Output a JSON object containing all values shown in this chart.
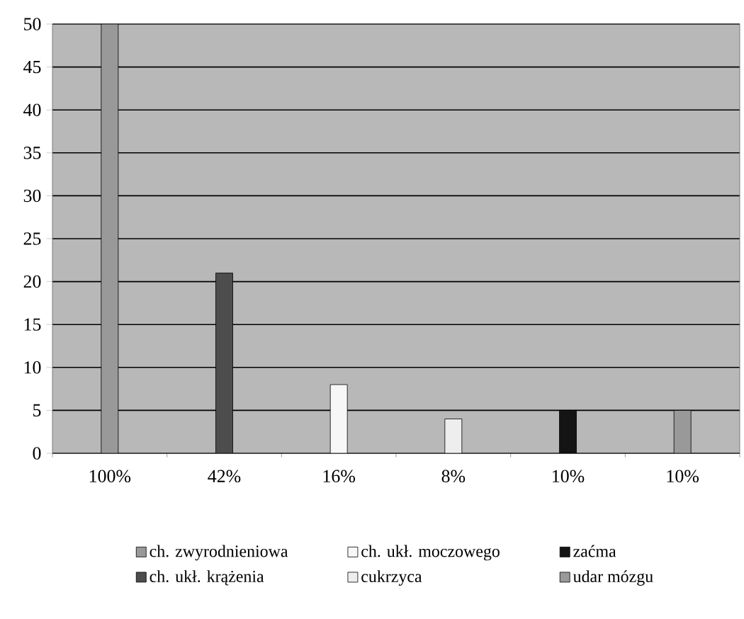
{
  "chart_data": {
    "type": "bar",
    "categories": [
      "100%",
      "42%",
      "16%",
      "8%",
      "10%",
      "10%"
    ],
    "series": [
      {
        "name": "ch. zwyrodnieniowa",
        "color": "#999999",
        "values": [
          50,
          null,
          null,
          null,
          null,
          null
        ]
      },
      {
        "name": "ch. ukł. krążenia",
        "color": "#4d4d4d",
        "values": [
          null,
          21,
          null,
          null,
          null,
          null
        ]
      },
      {
        "name": "ch. ukł. moczowego",
        "color": "#f7f7f7",
        "values": [
          null,
          null,
          8,
          null,
          null,
          null
        ]
      },
      {
        "name": "cukrzyca",
        "color": "#eeeeee",
        "values": [
          null,
          null,
          null,
          4,
          null,
          null
        ]
      },
      {
        "name": "zaćma",
        "color": "#141414",
        "values": [
          null,
          null,
          null,
          null,
          5,
          null
        ]
      },
      {
        "name": "udar mózgu",
        "color": "#999999",
        "values": [
          null,
          null,
          null,
          null,
          null,
          5
        ]
      }
    ],
    "ylim": [
      0,
      50
    ],
    "yticks": [
      0,
      5,
      10,
      15,
      20,
      25,
      30,
      35,
      40,
      45,
      50
    ],
    "grid": "y",
    "legend": "bottom"
  }
}
